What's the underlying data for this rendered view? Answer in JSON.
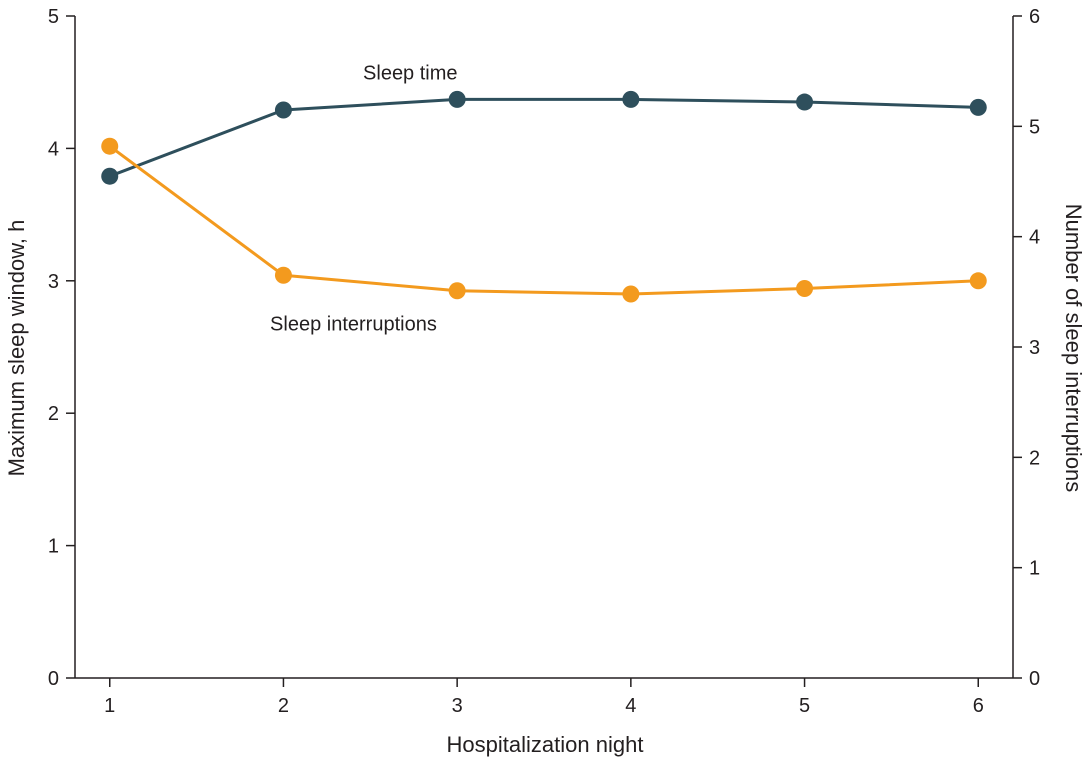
{
  "chart_data": {
    "type": "line",
    "x": [
      1,
      2,
      3,
      4,
      5,
      6
    ],
    "xlabel": "Hospitalization night",
    "ylabel": "Maximum sleep window, h",
    "y2label": "Number of sleep interruptions",
    "xlim": [
      0.8,
      6.2
    ],
    "ylim": [
      0,
      5
    ],
    "y2lim": [
      0,
      6
    ],
    "xticks": [
      "1",
      "2",
      "3",
      "4",
      "5",
      "6"
    ],
    "yticks": [
      "0",
      "1",
      "2",
      "3",
      "4",
      "5"
    ],
    "y2ticks": [
      "0",
      "1",
      "2",
      "3",
      "4",
      "5",
      "6"
    ],
    "grid": false,
    "series": [
      {
        "name": "Sleep time",
        "axis": "left",
        "color": "#2e4f5c",
        "values": [
          3.79,
          4.29,
          4.37,
          4.37,
          4.35,
          4.31
        ]
      },
      {
        "name": "Sleep interruptions",
        "axis": "right",
        "color": "#f39a1e",
        "values": [
          4.82,
          3.65,
          3.51,
          3.48,
          3.53,
          3.6
        ]
      }
    ]
  }
}
